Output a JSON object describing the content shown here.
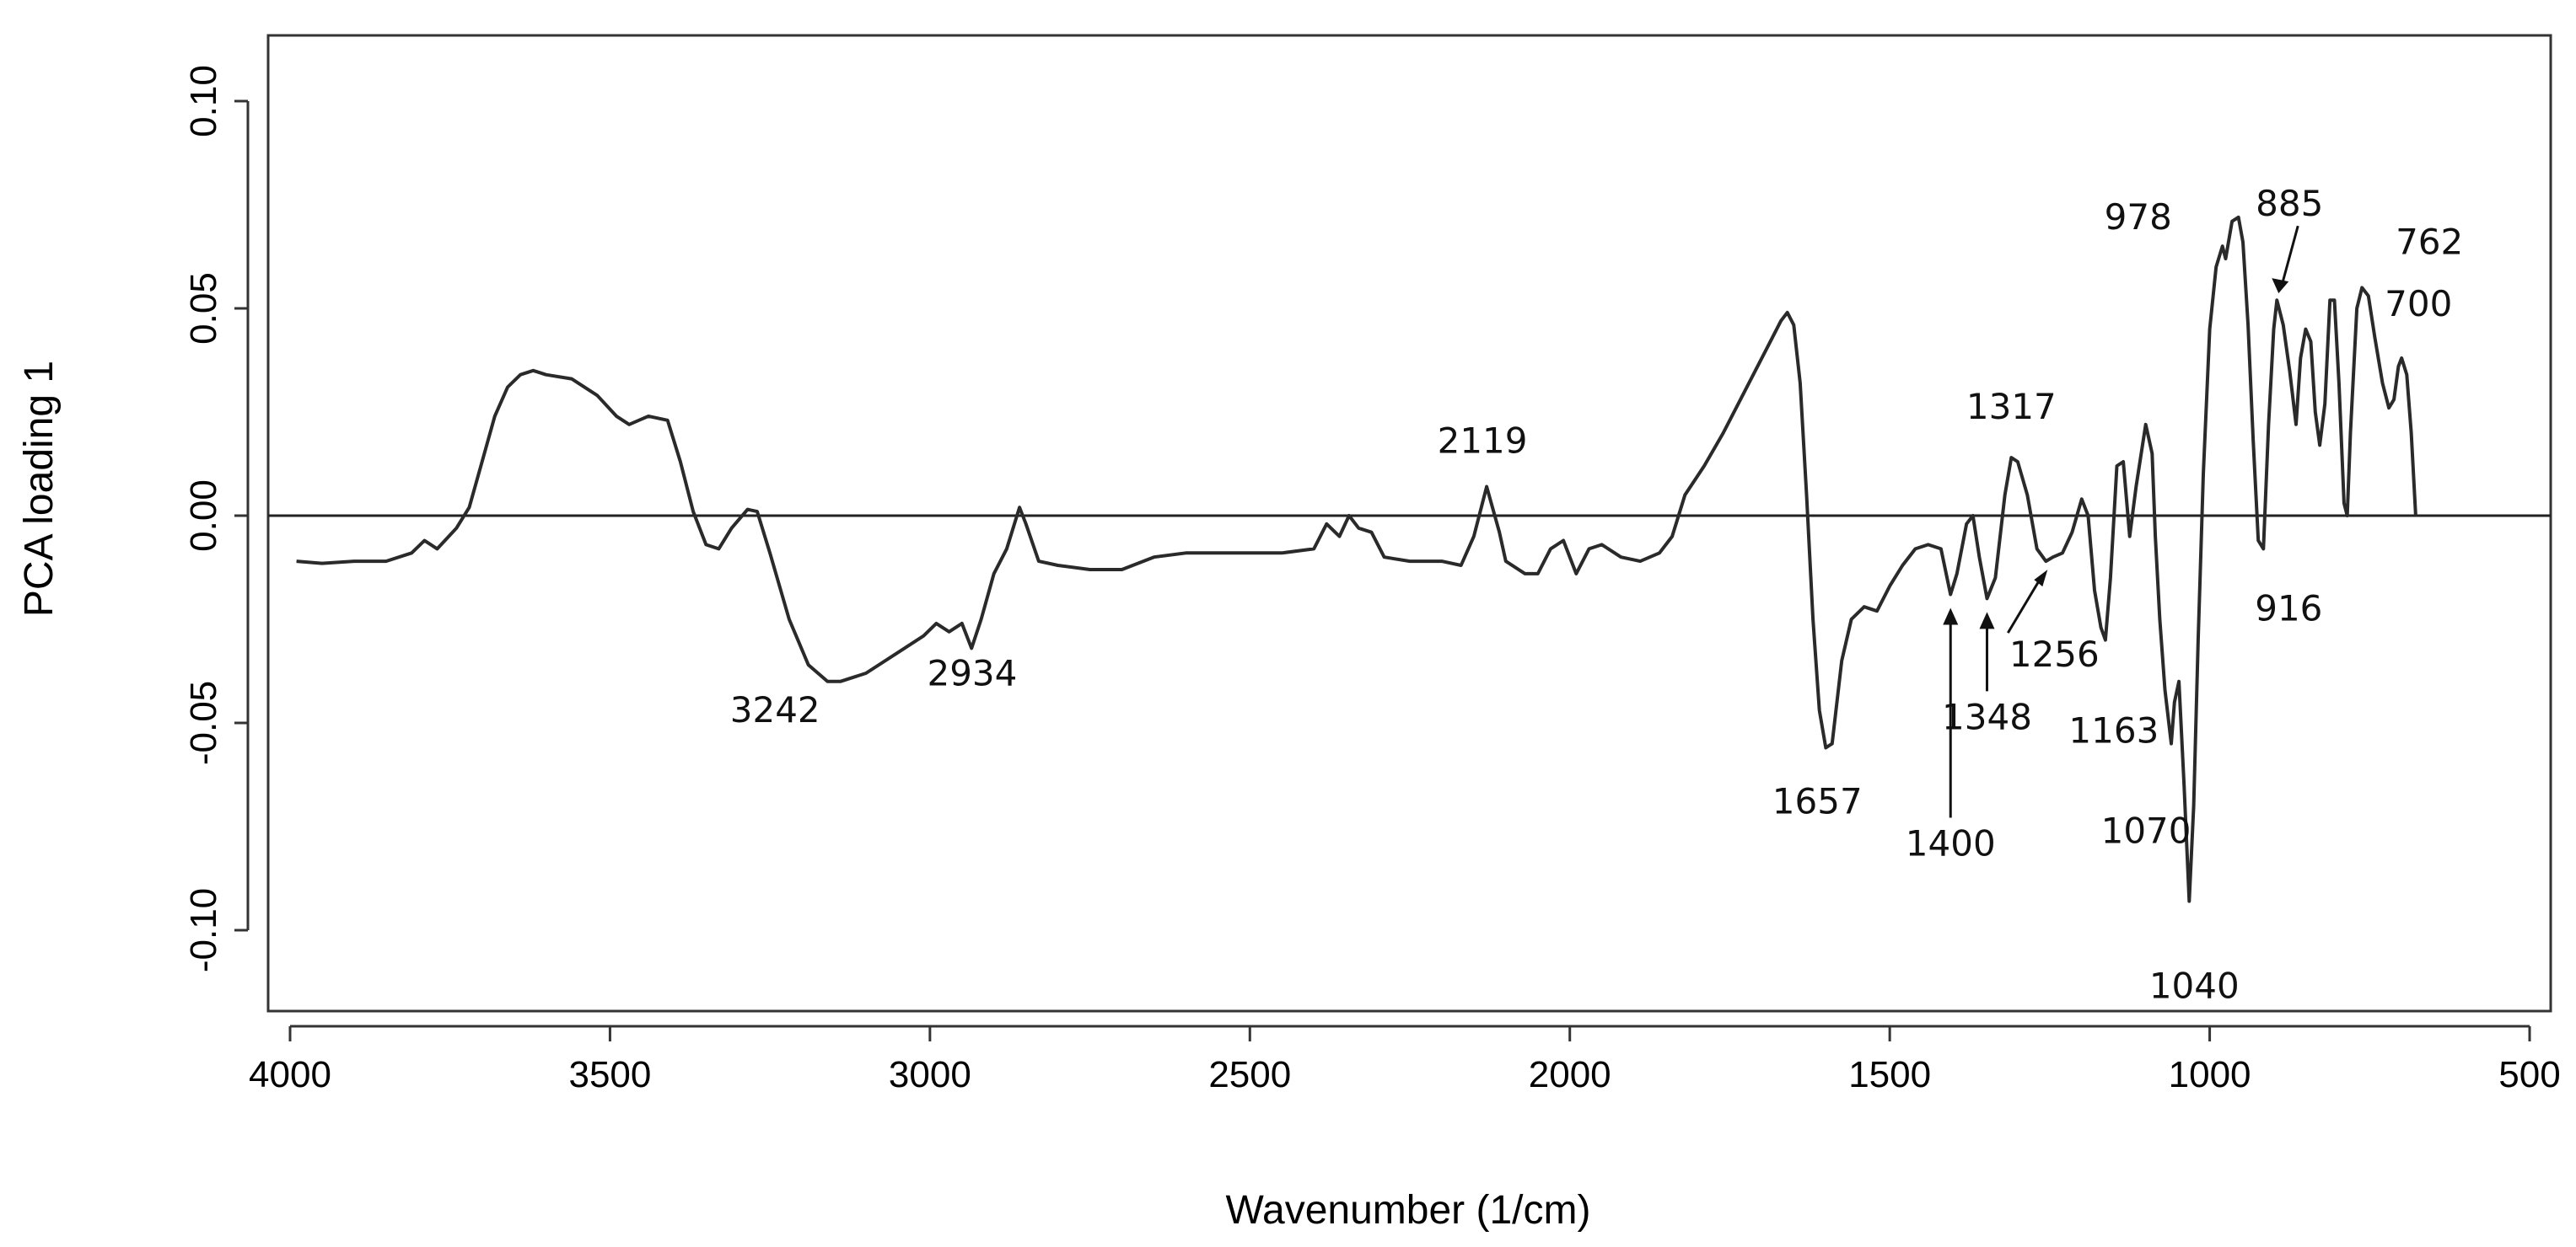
{
  "chart_data": {
    "type": "line",
    "title": "",
    "xlabel": "Wavenumber (1/cm)",
    "ylabel": "PCA loading 1",
    "xlim": [
      4000,
      500
    ],
    "ylim": [
      -0.12,
      0.12
    ],
    "x_ticks": [
      4000,
      3500,
      3000,
      2500,
      2000,
      1500,
      1000,
      500
    ],
    "x_tick_labels": [
      "4000",
      "3500",
      "3000",
      "2500",
      "2000",
      "1500",
      "1000",
      "500"
    ],
    "y_ticks": [
      -0.1,
      -0.05,
      0.0,
      0.05,
      0.1
    ],
    "y_tick_labels": [
      "-0.10",
      "-0.05",
      "0.00",
      "0.05",
      "0.10"
    ],
    "reference_line_y": 0,
    "grid": false,
    "series": [
      {
        "points": [
          [
            3990,
            -0.011
          ],
          [
            3950,
            -0.0115
          ],
          [
            3900,
            -0.011
          ],
          [
            3850,
            -0.011
          ],
          [
            3810,
            -0.009
          ],
          [
            3790,
            -0.006
          ],
          [
            3770,
            -0.008
          ],
          [
            3740,
            -0.003
          ],
          [
            3720,
            0.002
          ],
          [
            3700,
            0.013
          ],
          [
            3680,
            0.024
          ],
          [
            3660,
            0.031
          ],
          [
            3640,
            0.034
          ],
          [
            3620,
            0.035
          ],
          [
            3600,
            0.034
          ],
          [
            3560,
            0.033
          ],
          [
            3520,
            0.029
          ],
          [
            3490,
            0.024
          ],
          [
            3470,
            0.022
          ],
          [
            3440,
            0.024
          ],
          [
            3410,
            0.023
          ],
          [
            3390,
            0.013
          ],
          [
            3370,
            0.001
          ],
          [
            3350,
            -0.007
          ],
          [
            3330,
            -0.008
          ],
          [
            3310,
            -0.003
          ],
          [
            3285,
            0.0015
          ],
          [
            3270,
            0.001
          ],
          [
            3250,
            -0.009
          ],
          [
            3220,
            -0.025
          ],
          [
            3190,
            -0.036
          ],
          [
            3160,
            -0.04
          ],
          [
            3140,
            -0.04
          ],
          [
            3100,
            -0.038
          ],
          [
            3050,
            -0.033
          ],
          [
            3010,
            -0.029
          ],
          [
            2990,
            -0.026
          ],
          [
            2970,
            -0.028
          ],
          [
            2950,
            -0.026
          ],
          [
            2935,
            -0.032
          ],
          [
            2920,
            -0.025
          ],
          [
            2900,
            -0.014
          ],
          [
            2880,
            -0.008
          ],
          [
            2860,
            0.002
          ],
          [
            2850,
            -0.002
          ],
          [
            2830,
            -0.011
          ],
          [
            2800,
            -0.012
          ],
          [
            2750,
            -0.013
          ],
          [
            2700,
            -0.013
          ],
          [
            2650,
            -0.01
          ],
          [
            2600,
            -0.009
          ],
          [
            2550,
            -0.009
          ],
          [
            2500,
            -0.009
          ],
          [
            2450,
            -0.009
          ],
          [
            2400,
            -0.008
          ],
          [
            2380,
            -0.002
          ],
          [
            2360,
            -0.005
          ],
          [
            2345,
            0.0
          ],
          [
            2330,
            -0.003
          ],
          [
            2310,
            -0.004
          ],
          [
            2290,
            -0.01
          ],
          [
            2250,
            -0.011
          ],
          [
            2200,
            -0.011
          ],
          [
            2170,
            -0.012
          ],
          [
            2150,
            -0.005
          ],
          [
            2130,
            0.007
          ],
          [
            2110,
            -0.004
          ],
          [
            2100,
            -0.011
          ],
          [
            2070,
            -0.014
          ],
          [
            2050,
            -0.014
          ],
          [
            2030,
            -0.008
          ],
          [
            2010,
            -0.006
          ],
          [
            1990,
            -0.014
          ],
          [
            1970,
            -0.008
          ],
          [
            1950,
            -0.007
          ],
          [
            1920,
            -0.01
          ],
          [
            1890,
            -0.011
          ],
          [
            1860,
            -0.009
          ],
          [
            1840,
            -0.005
          ],
          [
            1820,
            0.005
          ],
          [
            1790,
            0.012
          ],
          [
            1760,
            0.02
          ],
          [
            1730,
            0.029
          ],
          [
            1710,
            0.035
          ],
          [
            1690,
            0.041
          ],
          [
            1670,
            0.047
          ],
          [
            1660,
            0.049
          ],
          [
            1650,
            0.046
          ],
          [
            1640,
            0.032
          ],
          [
            1630,
            0.005
          ],
          [
            1620,
            -0.025
          ],
          [
            1610,
            -0.047
          ],
          [
            1600,
            -0.056
          ],
          [
            1590,
            -0.055
          ],
          [
            1575,
            -0.035
          ],
          [
            1560,
            -0.025
          ],
          [
            1540,
            -0.022
          ],
          [
            1520,
            -0.023
          ],
          [
            1500,
            -0.017
          ],
          [
            1480,
            -0.012
          ],
          [
            1460,
            -0.008
          ],
          [
            1440,
            -0.007
          ],
          [
            1420,
            -0.008
          ],
          [
            1405,
            -0.019
          ],
          [
            1395,
            -0.014
          ],
          [
            1380,
            -0.002
          ],
          [
            1370,
            0.0
          ],
          [
            1360,
            -0.01
          ],
          [
            1348,
            -0.02
          ],
          [
            1335,
            -0.015
          ],
          [
            1320,
            0.005
          ],
          [
            1310,
            0.014
          ],
          [
            1300,
            0.013
          ],
          [
            1285,
            0.005
          ],
          [
            1270,
            -0.008
          ],
          [
            1256,
            -0.011
          ],
          [
            1245,
            -0.01
          ],
          [
            1230,
            -0.009
          ],
          [
            1215,
            -0.004
          ],
          [
            1200,
            0.004
          ],
          [
            1190,
            0.0
          ],
          [
            1180,
            -0.018
          ],
          [
            1170,
            -0.027
          ],
          [
            1163,
            -0.03
          ],
          [
            1155,
            -0.015
          ],
          [
            1145,
            0.012
          ],
          [
            1135,
            0.013
          ],
          [
            1125,
            -0.005
          ],
          [
            1115,
            0.007
          ],
          [
            1100,
            0.022
          ],
          [
            1090,
            0.015
          ],
          [
            1085,
            -0.005
          ],
          [
            1078,
            -0.025
          ],
          [
            1070,
            -0.042
          ],
          [
            1060,
            -0.055
          ],
          [
            1055,
            -0.045
          ],
          [
            1048,
            -0.04
          ],
          [
            1040,
            -0.065
          ],
          [
            1032,
            -0.093
          ],
          [
            1025,
            -0.07
          ],
          [
            1018,
            -0.03
          ],
          [
            1010,
            0.01
          ],
          [
            1000,
            0.045
          ],
          [
            990,
            0.06
          ],
          [
            980,
            0.065
          ],
          [
            975,
            0.062
          ],
          [
            965,
            0.071
          ],
          [
            955,
            0.072
          ],
          [
            948,
            0.066
          ],
          [
            940,
            0.046
          ],
          [
            932,
            0.018
          ],
          [
            924,
            -0.006
          ],
          [
            916,
            -0.008
          ],
          [
            908,
            0.022
          ],
          [
            900,
            0.045
          ],
          [
            895,
            0.052
          ],
          [
            885,
            0.046
          ],
          [
            875,
            0.035
          ],
          [
            865,
            0.022
          ],
          [
            858,
            0.038
          ],
          [
            850,
            0.045
          ],
          [
            842,
            0.042
          ],
          [
            835,
            0.025
          ],
          [
            828,
            0.017
          ],
          [
            820,
            0.027
          ],
          [
            812,
            0.052
          ],
          [
            805,
            0.052
          ],
          [
            798,
            0.032
          ],
          [
            790,
            0.003
          ],
          [
            785,
            -0.0
          ],
          [
            780,
            0.02
          ],
          [
            770,
            0.05
          ],
          [
            762,
            0.055
          ],
          [
            752,
            0.053
          ],
          [
            742,
            0.043
          ],
          [
            730,
            0.032
          ],
          [
            720,
            0.026
          ],
          [
            712,
            0.028
          ],
          [
            705,
            0.036
          ],
          [
            700,
            0.038
          ],
          [
            692,
            0.034
          ],
          [
            685,
            0.02
          ],
          [
            678,
            0.0
          ]
        ]
      }
    ],
    "annotations": [
      {
        "text": "3242",
        "x": 3242,
        "y": -0.04
      },
      {
        "text": "2934",
        "x": 2934,
        "y": -0.032
      },
      {
        "text": "2119",
        "x": 2130,
        "y": 0.007
      },
      {
        "text": "1657",
        "x": 1600,
        "y": -0.056
      },
      {
        "text": "1400",
        "x": 1405,
        "y": -0.019
      },
      {
        "text": "1348",
        "x": 1348,
        "y": -0.02
      },
      {
        "text": "1317",
        "x": 1310,
        "y": 0.014
      },
      {
        "text": "1256",
        "x": 1256,
        "y": -0.011
      },
      {
        "text": "1163",
        "x": 1163,
        "y": -0.03
      },
      {
        "text": "1070",
        "x": 1060,
        "y": -0.055
      },
      {
        "text": "1040",
        "x": 1032,
        "y": -0.093
      },
      {
        "text": "978",
        "x": 980,
        "y": 0.065
      },
      {
        "text": "916",
        "x": 916,
        "y": -0.008
      },
      {
        "text": "885",
        "x": 895,
        "y": 0.052
      },
      {
        "text": "762",
        "x": 762,
        "y": 0.055
      },
      {
        "text": "700",
        "x": 700,
        "y": 0.038
      }
    ]
  }
}
